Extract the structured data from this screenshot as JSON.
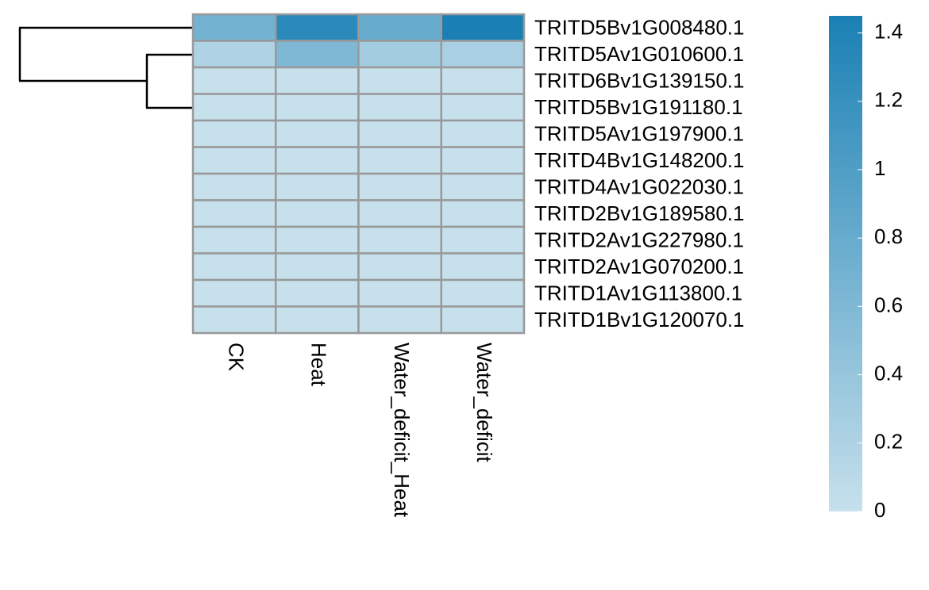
{
  "chart_data": {
    "type": "heatmap",
    "rows": [
      "TRITD5Bv1G008480.1",
      "TRITD5Av1G010600.1",
      "TRITD6Bv1G139150.1",
      "TRITD5Bv1G191180.1",
      "TRITD5Av1G197900.1",
      "TRITD4Bv1G148200.1",
      "TRITD4Av1G022030.1",
      "TRITD2Bv1G189580.1",
      "TRITD2Av1G227980.1",
      "TRITD2Av1G070200.1",
      "TRITD1Av1G113800.1",
      "TRITD1Bv1G120070.1"
    ],
    "columns": [
      "CK",
      "Heat",
      "Water_deficit_Heat",
      "Water_deficit"
    ],
    "values": [
      [
        0.7,
        1.3,
        0.8,
        1.45
      ],
      [
        0.2,
        0.6,
        0.3,
        0.25
      ],
      [
        0,
        0,
        0,
        0
      ],
      [
        0,
        0,
        0,
        0
      ],
      [
        0,
        0,
        0,
        0
      ],
      [
        0,
        0,
        0,
        0
      ],
      [
        0,
        0,
        0,
        0
      ],
      [
        0,
        0,
        0,
        0
      ],
      [
        0,
        0,
        0,
        0
      ],
      [
        0,
        0,
        0,
        0
      ],
      [
        0,
        0,
        0,
        0
      ],
      [
        0,
        0,
        0,
        0
      ]
    ],
    "colors": [
      "#c6e0ec",
      "#1a80b4"
    ],
    "zlim": [
      0,
      1.45
    ],
    "zticks": [
      0,
      0.2,
      0.4,
      0.6,
      0.8,
      1,
      1.2,
      1.4
    ]
  }
}
